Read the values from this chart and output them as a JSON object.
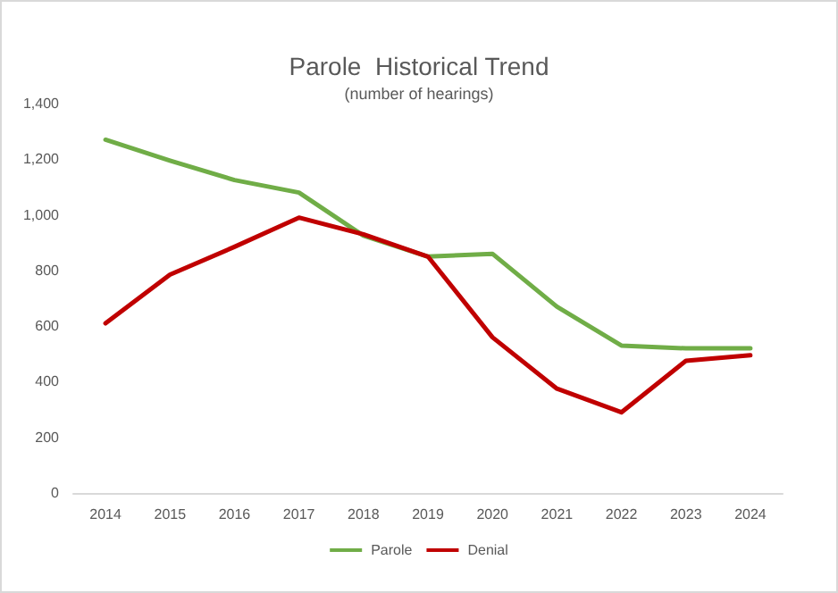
{
  "chart_data": {
    "type": "line",
    "title": "Parole  Historical Trend",
    "subtitle": "(number of hearings)",
    "categories": [
      "2014",
      "2015",
      "2016",
      "2017",
      "2018",
      "2019",
      "2020",
      "2021",
      "2022",
      "2023",
      "2024"
    ],
    "series": [
      {
        "name": "Parole",
        "color": "#70ad47",
        "values": [
          1270,
          1195,
          1125,
          1080,
          925,
          850,
          860,
          670,
          530,
          520,
          520
        ]
      },
      {
        "name": "Denial",
        "color": "#c00000",
        "values": [
          610,
          785,
          885,
          990,
          930,
          850,
          560,
          375,
          290,
          475,
          495
        ]
      }
    ],
    "ylim": [
      0,
      1400
    ],
    "yticks": [
      0,
      200,
      400,
      600,
      800,
      {
        "value": 1000,
        "label": "1,000"
      },
      {
        "value": 1200,
        "label": "1,200"
      },
      {
        "value": 1400,
        "label": "1,400"
      }
    ],
    "grid": false,
    "legend": "bottom",
    "marker": "none",
    "line_style": "solid"
  }
}
